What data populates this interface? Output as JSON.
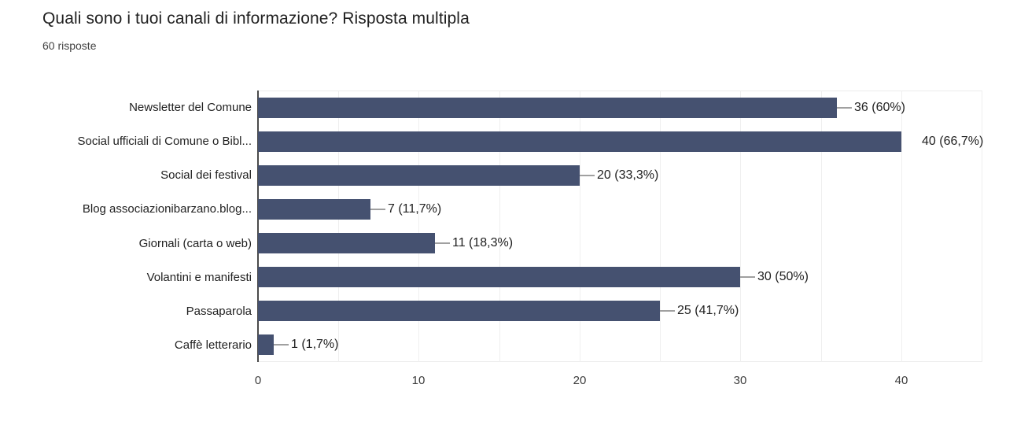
{
  "header": {
    "title": "Quali sono i tuoi canali di informazione? Risposta multipla",
    "subtitle": "60 risposte"
  },
  "colors": {
    "bar": "#455170",
    "gridline": "#efefef",
    "axis_line": "#4a4a4a",
    "connector": "#a0a0a0",
    "title_text": "#212121",
    "label_text": "#212121",
    "tick_text": "#3c3c3c",
    "background": "#ffffff"
  },
  "chart_data": {
    "type": "bar",
    "orientation": "horizontal",
    "title": "Quali sono i tuoi canali di informazione? Risposta multipla",
    "subtitle": "60 risposte",
    "categories": [
      "Newsletter del Comune",
      "Social ufficiali di Comune o Bibl...",
      "Social dei festival",
      "Blog associazionibarzano.blog...",
      "Giornali (carta o web)",
      "Volantini e manifesti",
      "Passaparola",
      "Caffè letterario"
    ],
    "series": [
      {
        "name": "risposte",
        "values": [
          36,
          40,
          20,
          7,
          11,
          30,
          25,
          1
        ],
        "annotations": [
          "36 (60%)",
          "40 (66,7%)",
          "20 (33,3%)",
          "7 (11,7%)",
          "11 (18,3%)",
          "30 (50%)",
          "25 (41,7%)",
          "1 (1,7%)"
        ],
        "percentages": [
          "60%",
          "66,7%",
          "33,3%",
          "11,7%",
          "18,3%",
          "50%",
          "41,7%",
          "1,7%"
        ]
      }
    ],
    "xlabel": "",
    "ylabel": "",
    "x_ticks": [
      0,
      10,
      20,
      30,
      40
    ],
    "xlim": [
      0,
      45
    ],
    "gridline_step": 5,
    "grid": true,
    "legend_position": "none"
  }
}
